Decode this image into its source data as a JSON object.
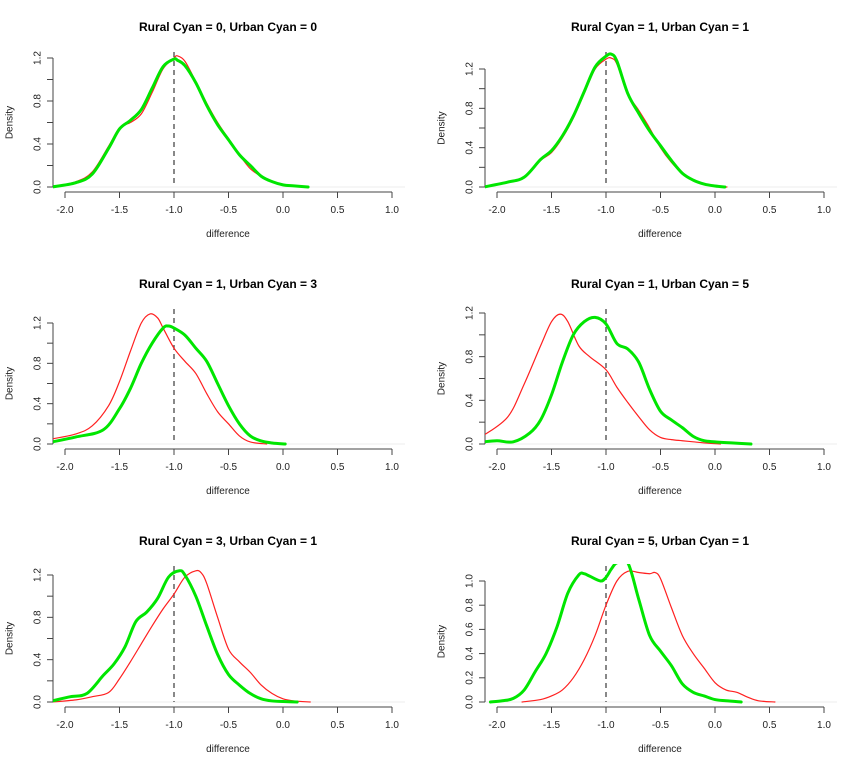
{
  "figure": {
    "background": "#ffffff"
  },
  "chart_data": [
    {
      "type": "line",
      "title": "Rural Cyan = 0, Urban Cyan = 0",
      "xlabel": "difference",
      "ylabel": "Density",
      "xlim": [
        -2.1,
        1.0
      ],
      "ylim": [
        0,
        1.25
      ],
      "x_ticks": [
        -2.0,
        -1.5,
        -1.0,
        -0.5,
        0.0,
        0.5,
        1.0
      ],
      "x_tick_labels": [
        "-2.0",
        "-1.5",
        "-1.0",
        "-0.5",
        "0.0",
        "0.5",
        "1.0"
      ],
      "y_ticks": [
        0.0,
        0.2,
        0.4,
        0.6,
        0.8,
        1.0,
        1.2
      ],
      "y_tick_labels": [
        "0.0",
        "",
        "0.4",
        "",
        "0.8",
        "",
        "1.2"
      ],
      "reference_line": {
        "x": -1.0,
        "style": "dashed",
        "color": "#555555"
      },
      "series": [
        {
          "name": "red",
          "color": "#ff2020",
          "x": [
            -2.12,
            -1.9,
            -1.75,
            -1.6,
            -1.5,
            -1.4,
            -1.3,
            -1.2,
            -1.1,
            -1.0,
            -0.97,
            -0.9,
            -0.8,
            -0.7,
            -0.6,
            -0.5,
            -0.4,
            -0.3,
            -0.2,
            -0.1,
            0.0,
            0.1,
            0.2
          ],
          "y": [
            0.0,
            0.05,
            0.14,
            0.38,
            0.55,
            0.6,
            0.68,
            0.88,
            1.1,
            1.2,
            1.22,
            1.17,
            0.98,
            0.78,
            0.6,
            0.45,
            0.3,
            0.17,
            0.1,
            0.05,
            0.02,
            0.01,
            0.0
          ]
        },
        {
          "name": "green",
          "color": "#00e600",
          "x": [
            -2.12,
            -1.9,
            -1.75,
            -1.6,
            -1.5,
            -1.4,
            -1.3,
            -1.2,
            -1.1,
            -1.0,
            -0.97,
            -0.9,
            -0.8,
            -0.7,
            -0.6,
            -0.5,
            -0.4,
            -0.3,
            -0.2,
            -0.1,
            0.0,
            0.1,
            0.23
          ],
          "y": [
            0.0,
            0.04,
            0.12,
            0.36,
            0.54,
            0.62,
            0.72,
            0.92,
            1.12,
            1.19,
            1.18,
            1.13,
            0.97,
            0.76,
            0.58,
            0.44,
            0.3,
            0.2,
            0.1,
            0.05,
            0.02,
            0.01,
            0.0
          ]
        }
      ]
    },
    {
      "type": "line",
      "title": "Rural Cyan = 1, Urban Cyan = 1",
      "xlabel": "difference",
      "ylabel": "Density",
      "xlim": [
        -2.1,
        1.0
      ],
      "ylim": [
        0,
        1.38
      ],
      "x_ticks": [
        -2.0,
        -1.5,
        -1.0,
        -0.5,
        0.0,
        0.5,
        1.0
      ],
      "x_tick_labels": [
        "-2.0",
        "-1.5",
        "-1.0",
        "-0.5",
        "0.0",
        "0.5",
        "1.0"
      ],
      "y_ticks": [
        0.0,
        0.2,
        0.4,
        0.6,
        0.8,
        1.0,
        1.2
      ],
      "y_tick_labels": [
        "0.0",
        "",
        "0.4",
        "",
        "0.8",
        "",
        "1.2"
      ],
      "reference_line": {
        "x": -1.0,
        "style": "dashed",
        "color": "#555555"
      },
      "series": [
        {
          "name": "red",
          "color": "#ff2020",
          "x": [
            -2.12,
            -1.9,
            -1.75,
            -1.6,
            -1.5,
            -1.4,
            -1.3,
            -1.2,
            -1.1,
            -1.0,
            -0.95,
            -0.9,
            -0.8,
            -0.7,
            -0.6,
            -0.5,
            -0.4,
            -0.3,
            -0.2,
            -0.1,
            0.0,
            0.11
          ],
          "y": [
            0.0,
            0.05,
            0.1,
            0.27,
            0.35,
            0.5,
            0.7,
            0.95,
            1.2,
            1.3,
            1.31,
            1.25,
            0.95,
            0.78,
            0.6,
            0.4,
            0.25,
            0.14,
            0.07,
            0.03,
            0.01,
            0.0
          ]
        },
        {
          "name": "green",
          "color": "#00e600",
          "x": [
            -2.12,
            -1.9,
            -1.75,
            -1.6,
            -1.5,
            -1.4,
            -1.3,
            -1.2,
            -1.1,
            -1.0,
            -0.95,
            -0.9,
            -0.8,
            -0.7,
            -0.6,
            -0.5,
            -0.4,
            -0.3,
            -0.2,
            -0.1,
            0.0,
            0.09
          ],
          "y": [
            0.0,
            0.05,
            0.1,
            0.28,
            0.37,
            0.52,
            0.72,
            0.97,
            1.22,
            1.33,
            1.35,
            1.28,
            0.95,
            0.75,
            0.57,
            0.42,
            0.27,
            0.14,
            0.07,
            0.03,
            0.01,
            0.0
          ]
        }
      ]
    },
    {
      "type": "line",
      "title": "Rural Cyan = 1, Urban Cyan = 3",
      "xlabel": "difference",
      "ylabel": "Density",
      "xlim": [
        -2.1,
        1.0
      ],
      "ylim": [
        0,
        1.35
      ],
      "x_ticks": [
        -2.0,
        -1.5,
        -1.0,
        -0.5,
        0.0,
        0.5,
        1.0
      ],
      "x_tick_labels": [
        "-2.0",
        "-1.5",
        "-1.0",
        "-0.5",
        "0.0",
        "0.5",
        "1.0"
      ],
      "y_ticks": [
        0.0,
        0.2,
        0.4,
        0.6,
        0.8,
        1.0,
        1.2
      ],
      "y_tick_labels": [
        "0.0",
        "",
        "0.4",
        "",
        "0.8",
        "",
        "1.2"
      ],
      "reference_line": {
        "x": -1.0,
        "style": "dashed",
        "color": "#555555"
      },
      "series": [
        {
          "name": "red",
          "color": "#ff2020",
          "x": [
            -2.12,
            -1.9,
            -1.75,
            -1.6,
            -1.5,
            -1.4,
            -1.3,
            -1.22,
            -1.15,
            -1.1,
            -1.0,
            -0.9,
            -0.8,
            -0.7,
            -0.6,
            -0.5,
            -0.4,
            -0.3,
            -0.15
          ],
          "y": [
            0.05,
            0.1,
            0.18,
            0.38,
            0.62,
            0.92,
            1.2,
            1.29,
            1.25,
            1.15,
            0.95,
            0.82,
            0.7,
            0.5,
            0.32,
            0.2,
            0.08,
            0.02,
            0.0
          ]
        },
        {
          "name": "green",
          "color": "#00e600",
          "x": [
            -2.12,
            -1.9,
            -1.65,
            -1.5,
            -1.4,
            -1.3,
            -1.2,
            -1.1,
            -1.05,
            -1.0,
            -0.9,
            -0.8,
            -0.7,
            -0.6,
            -0.5,
            -0.4,
            -0.3,
            -0.2,
            -0.1,
            0.02
          ],
          "y": [
            0.02,
            0.07,
            0.14,
            0.35,
            0.55,
            0.8,
            1.0,
            1.15,
            1.17,
            1.15,
            1.08,
            0.95,
            0.82,
            0.6,
            0.38,
            0.2,
            0.08,
            0.03,
            0.01,
            0.0
          ]
        }
      ]
    },
    {
      "type": "line",
      "title": "Rural Cyan = 1, Urban Cyan = 5",
      "xlabel": "difference",
      "ylabel": "Density",
      "xlim": [
        -2.1,
        1.0
      ],
      "ylim": [
        0,
        1.23
      ],
      "x_ticks": [
        -2.0,
        -1.5,
        -1.0,
        -0.5,
        0.0,
        0.5,
        1.0
      ],
      "x_tick_labels": [
        "-2.0",
        "-1.5",
        "-1.0",
        "-0.5",
        "0.0",
        "0.5",
        "1.0"
      ],
      "y_ticks": [
        0.0,
        0.2,
        0.4,
        0.6,
        0.8,
        1.0,
        1.2
      ],
      "y_tick_labels": [
        "0.0",
        "",
        "0.4",
        "",
        "0.8",
        "",
        "1.2"
      ],
      "reference_line": {
        "x": -1.0,
        "style": "dashed",
        "color": "#555555"
      },
      "series": [
        {
          "name": "red",
          "color": "#ff2020",
          "x": [
            -2.12,
            -1.9,
            -1.75,
            -1.6,
            -1.5,
            -1.42,
            -1.35,
            -1.25,
            -1.15,
            -1.0,
            -0.9,
            -0.8,
            -0.7,
            -0.6,
            -0.5,
            -0.4,
            -0.3,
            -0.2,
            -0.1,
            0.05
          ],
          "y": [
            0.08,
            0.25,
            0.55,
            0.9,
            1.12,
            1.19,
            1.12,
            0.9,
            0.8,
            0.68,
            0.52,
            0.38,
            0.25,
            0.13,
            0.06,
            0.04,
            0.03,
            0.02,
            0.01,
            0.0
          ]
        },
        {
          "name": "green",
          "color": "#00e600",
          "x": [
            -2.12,
            -2.0,
            -1.85,
            -1.7,
            -1.6,
            -1.5,
            -1.4,
            -1.3,
            -1.2,
            -1.1,
            -1.0,
            -0.9,
            -0.8,
            -0.7,
            -0.6,
            -0.5,
            -0.4,
            -0.3,
            -0.2,
            -0.1,
            0.0,
            0.15,
            0.33
          ],
          "y": [
            0.02,
            0.03,
            0.02,
            0.1,
            0.22,
            0.45,
            0.75,
            1.0,
            1.12,
            1.16,
            1.1,
            0.92,
            0.87,
            0.75,
            0.5,
            0.3,
            0.22,
            0.15,
            0.07,
            0.03,
            0.02,
            0.01,
            0.0
          ]
        }
      ]
    },
    {
      "type": "line",
      "title": "Rural Cyan = 3, Urban Cyan = 1",
      "xlabel": "difference",
      "ylabel": "Density",
      "xlim": [
        -2.1,
        1.0
      ],
      "ylim": [
        0,
        1.27
      ],
      "x_ticks": [
        -2.0,
        -1.5,
        -1.0,
        -0.5,
        0.0,
        0.5,
        1.0
      ],
      "x_tick_labels": [
        "-2.0",
        "-1.5",
        "-1.0",
        "-0.5",
        "0.0",
        "0.5",
        "1.0"
      ],
      "y_ticks": [
        0.0,
        0.2,
        0.4,
        0.6,
        0.8,
        1.0,
        1.2
      ],
      "y_tick_labels": [
        "0.0",
        "",
        "0.4",
        "",
        "0.8",
        "",
        "1.2"
      ],
      "reference_line": {
        "x": -1.0,
        "style": "dashed",
        "color": "#555555"
      },
      "series": [
        {
          "name": "red",
          "color": "#ff2020",
          "x": [
            -2.12,
            -1.9,
            -1.75,
            -1.6,
            -1.5,
            -1.4,
            -1.3,
            -1.2,
            -1.1,
            -1.0,
            -0.9,
            -0.8,
            -0.75,
            -0.7,
            -0.6,
            -0.5,
            -0.4,
            -0.3,
            -0.2,
            -0.1,
            0.0,
            0.1,
            0.25
          ],
          "y": [
            0.0,
            0.02,
            0.05,
            0.09,
            0.22,
            0.38,
            0.55,
            0.72,
            0.88,
            1.02,
            1.18,
            1.24,
            1.22,
            1.12,
            0.8,
            0.5,
            0.38,
            0.28,
            0.16,
            0.08,
            0.03,
            0.01,
            0.0
          ]
        },
        {
          "name": "green",
          "color": "#00e600",
          "x": [
            -2.12,
            -1.95,
            -1.8,
            -1.65,
            -1.55,
            -1.45,
            -1.35,
            -1.25,
            -1.15,
            -1.05,
            -0.95,
            -0.9,
            -0.8,
            -0.7,
            -0.6,
            -0.5,
            -0.4,
            -0.3,
            -0.2,
            -0.1,
            0.0,
            0.13
          ],
          "y": [
            0.01,
            0.05,
            0.08,
            0.25,
            0.36,
            0.52,
            0.76,
            0.85,
            0.98,
            1.18,
            1.24,
            1.2,
            1.0,
            0.72,
            0.45,
            0.26,
            0.16,
            0.08,
            0.03,
            0.01,
            0.005,
            0.0
          ]
        }
      ]
    },
    {
      "type": "line",
      "title": "Rural Cyan = 5, Urban Cyan = 1",
      "xlabel": "difference",
      "ylabel": "Density",
      "xlim": [
        -2.1,
        1.0
      ],
      "ylim": [
        0,
        1.1
      ],
      "x_ticks": [
        -2.0,
        -1.5,
        -1.0,
        -0.5,
        0.0,
        0.5,
        1.0
      ],
      "x_tick_labels": [
        "-2.0",
        "-1.5",
        "-1.0",
        "-0.5",
        "0.0",
        "0.5",
        "1.0"
      ],
      "y_ticks": [
        0.0,
        0.2,
        0.4,
        0.6,
        0.8,
        1.0
      ],
      "y_tick_labels": [
        "0.0",
        "0.2",
        "0.4",
        "0.6",
        "0.8",
        "1.0"
      ],
      "reference_line": {
        "x": -1.0,
        "style": "dashed",
        "color": "#555555"
      },
      "series": [
        {
          "name": "red",
          "color": "#ff2020",
          "x": [
            -1.77,
            -1.6,
            -1.5,
            -1.4,
            -1.3,
            -1.2,
            -1.1,
            -1.0,
            -0.9,
            -0.8,
            -0.7,
            -0.6,
            -0.55,
            -0.5,
            -0.4,
            -0.3,
            -0.2,
            -0.1,
            0.0,
            0.1,
            0.2,
            0.3,
            0.4,
            0.55
          ],
          "y": [
            0.0,
            0.02,
            0.05,
            0.1,
            0.2,
            0.35,
            0.55,
            0.8,
            1.0,
            1.08,
            1.07,
            1.06,
            1.07,
            1.02,
            0.78,
            0.55,
            0.4,
            0.28,
            0.16,
            0.1,
            0.08,
            0.04,
            0.01,
            0.0
          ]
        },
        {
          "name": "green",
          "color": "#00e600",
          "x": [
            -2.06,
            -1.95,
            -1.85,
            -1.75,
            -1.65,
            -1.55,
            -1.45,
            -1.35,
            -1.25,
            -1.2,
            -1.15,
            -1.05,
            -1.0,
            -0.95,
            -0.9,
            -0.8,
            -0.7,
            -0.6,
            -0.5,
            -0.4,
            -0.3,
            -0.2,
            -0.1,
            0.0,
            0.1,
            0.24
          ],
          "y": [
            0.0,
            0.01,
            0.03,
            0.1,
            0.25,
            0.4,
            0.62,
            0.9,
            1.05,
            1.06,
            1.04,
            1.0,
            1.03,
            1.1,
            1.15,
            1.15,
            0.85,
            0.55,
            0.42,
            0.3,
            0.15,
            0.08,
            0.05,
            0.02,
            0.01,
            0.0
          ]
        }
      ]
    }
  ]
}
